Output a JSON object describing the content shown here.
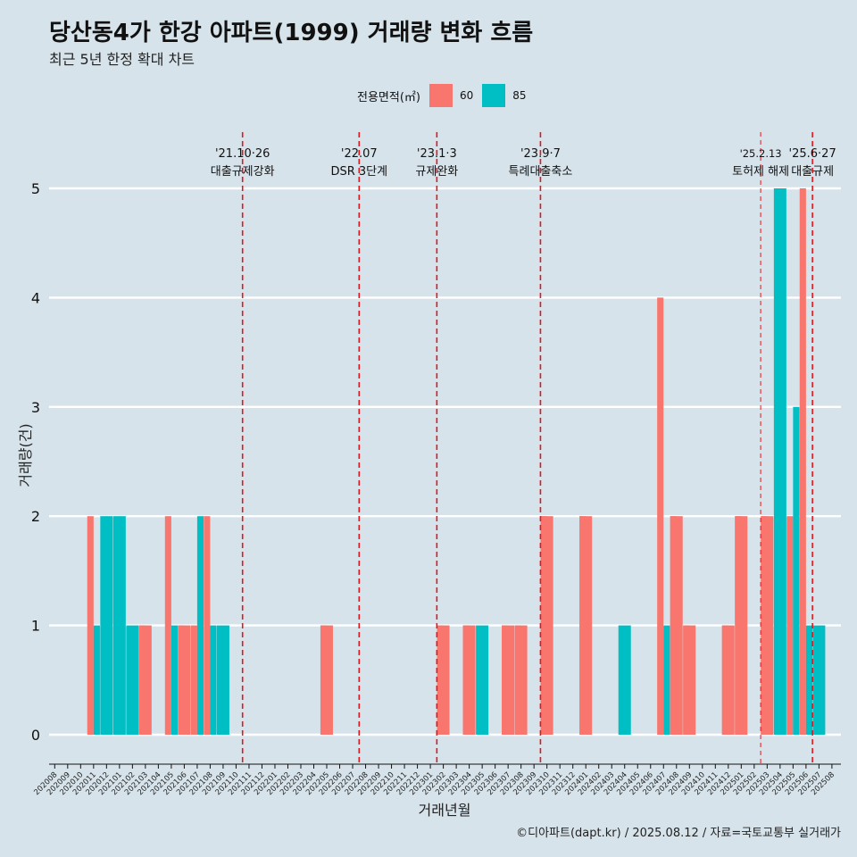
{
  "title": "당산동4가 한강 아파트(1999) 거래량 변화 흐름",
  "subtitle": "최근 5년 한정 확대 차트",
  "legend": {
    "title": "전용면적(㎡)",
    "item0": "60",
    "item1": "85"
  },
  "caption": "©디아파트(dapt.kr) / 2025.08.12 / 자료=국토교통부 실거래가",
  "colors": {
    "s60": "#f8766d",
    "s85": "#00bfc4",
    "background": "#d6e3ea",
    "grid": "#ffffff",
    "event_line": "#e8141b"
  },
  "chart_data": {
    "type": "bar",
    "title": "당산동4가 한강 아파트(1999) 거래량 변화 흐름",
    "subtitle": "최근 5년 한정 확대 차트",
    "xlabel": "거래년월",
    "ylabel": "거래량(건)",
    "ylim": [
      0,
      5
    ],
    "yticks": [
      0,
      1,
      2,
      3,
      4,
      5
    ],
    "legend_position": "top",
    "grid": true,
    "categories": [
      "202008",
      "202009",
      "202010",
      "202011",
      "202012",
      "202101",
      "202102",
      "202103",
      "202104",
      "202105",
      "202106",
      "202107",
      "202108",
      "202109",
      "202110",
      "202111",
      "202112",
      "202201",
      "202202",
      "202203",
      "202204",
      "202205",
      "202206",
      "202207",
      "202208",
      "202209",
      "202210",
      "202211",
      "202212",
      "202301",
      "202302",
      "202303",
      "202304",
      "202305",
      "202306",
      "202307",
      "202308",
      "202309",
      "202310",
      "202311",
      "202312",
      "202401",
      "202402",
      "202403",
      "202404",
      "202405",
      "202406",
      "202407",
      "202408",
      "202409",
      "202410",
      "202411",
      "202412",
      "202501",
      "202502",
      "202503",
      "202504",
      "202505",
      "202506",
      "202507",
      "202508"
    ],
    "series": [
      {
        "name": "60",
        "color": "#f8766d",
        "values": [
          0,
          0,
          0,
          2,
          0,
          0,
          0,
          1,
          0,
          2,
          1,
          1,
          2,
          0,
          0,
          0,
          0,
          0,
          0,
          0,
          0,
          1,
          0,
          0,
          0,
          0,
          0,
          0,
          0,
          0,
          1,
          0,
          1,
          0,
          0,
          1,
          1,
          0,
          2,
          0,
          0,
          2,
          0,
          0,
          0,
          0,
          0,
          4,
          2,
          1,
          0,
          0,
          1,
          2,
          0,
          2,
          0,
          2,
          5,
          0,
          0
        ]
      },
      {
        "name": "85",
        "color": "#00bfc4",
        "values": [
          0,
          0,
          0,
          1,
          2,
          2,
          1,
          0,
          0,
          1,
          0,
          2,
          1,
          1,
          0,
          0,
          0,
          0,
          0,
          0,
          0,
          0,
          0,
          0,
          0,
          0,
          0,
          0,
          0,
          0,
          0,
          0,
          0,
          1,
          0,
          0,
          0,
          0,
          0,
          0,
          0,
          0,
          0,
          0,
          1,
          0,
          0,
          1,
          0,
          0,
          0,
          0,
          0,
          0,
          0,
          0,
          5,
          3,
          1,
          1,
          0
        ]
      }
    ],
    "events": [
      {
        "date_label": "'21.10·26",
        "text": "대출규제강화",
        "x": "202110",
        "style": "thick"
      },
      {
        "date_label": "'22.07",
        "text": "DSR 3단계",
        "x": "202207",
        "style": "thick"
      },
      {
        "date_label": "'23.1·3",
        "text": "규제완화",
        "x": "202301",
        "style": "thick"
      },
      {
        "date_label": "'23.9·7",
        "text": "특례대출축소",
        "x": "202309",
        "style": "thick"
      },
      {
        "date_label": "'25.2.13",
        "text": "토허제 해제",
        "x": "202502",
        "style": "thin"
      },
      {
        "date_label": "'25.6·27",
        "text": "대출규제",
        "x": "202506",
        "style": "thick"
      }
    ]
  }
}
